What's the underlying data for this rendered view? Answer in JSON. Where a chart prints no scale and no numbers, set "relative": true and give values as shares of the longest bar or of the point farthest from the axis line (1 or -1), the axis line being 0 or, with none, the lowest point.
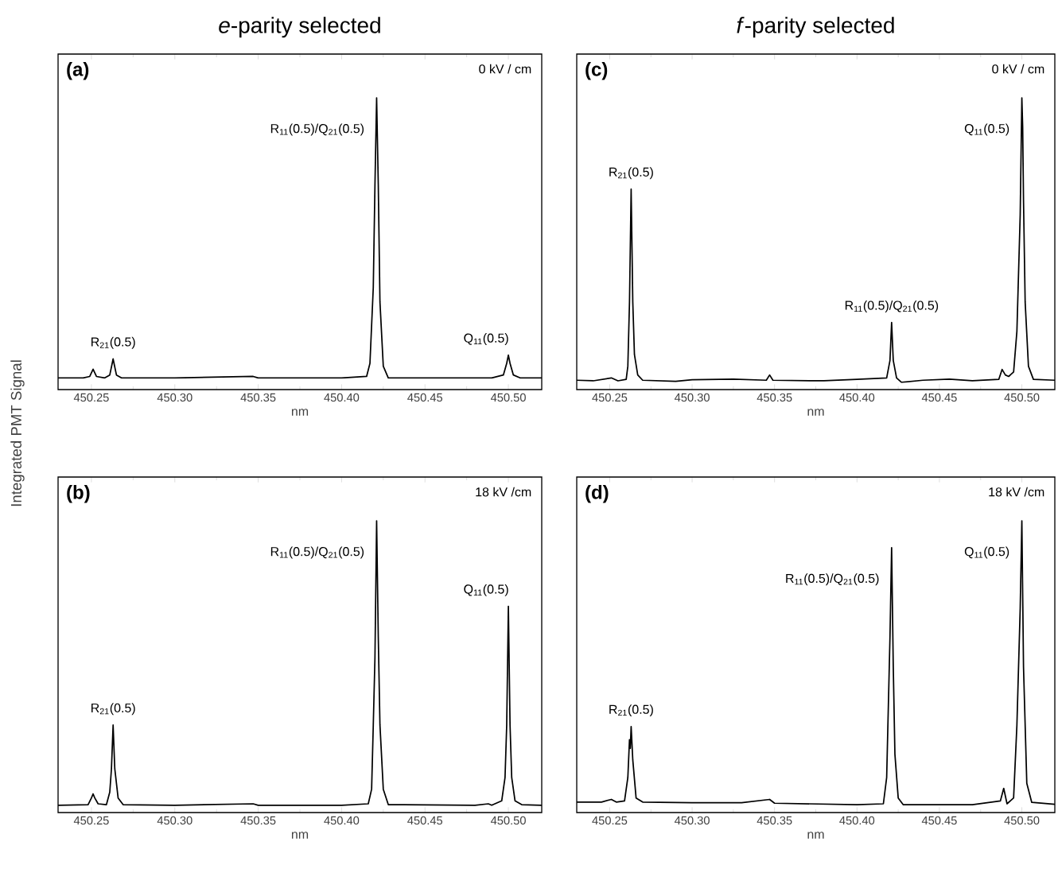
{
  "chart_data": [
    {
      "type": "line",
      "title": "*e*-parity selected",
      "ylabel": "Integrated PMT Signal",
      "xlabel": "nm",
      "relative": true,
      "color": "#000000",
      "x": [
        450.23,
        450.245,
        450.249,
        450.251,
        450.253,
        450.258,
        450.261,
        450.263,
        450.265,
        450.268,
        450.3,
        450.347,
        450.35,
        450.4,
        450.415,
        450.417,
        450.419,
        450.42,
        450.421,
        450.422,
        450.423,
        450.425,
        450.428,
        450.49,
        450.497,
        450.499,
        450.5,
        450.501,
        450.503,
        450.507,
        450.52
      ],
      "values": [
        0.04,
        0.04,
        0.045,
        0.07,
        0.045,
        0.04,
        0.05,
        0.105,
        0.05,
        0.04,
        0.04,
        0.045,
        0.04,
        0.04,
        0.045,
        0.09,
        0.35,
        0.7,
        1.0,
        0.7,
        0.3,
        0.08,
        0.04,
        0.04,
        0.05,
        0.09,
        0.118,
        0.09,
        0.05,
        0.04,
        0.04
      ],
      "xlim": [
        450.23,
        450.52
      ],
      "xticks": [
        450.25,
        {
          "value": 450.3,
          "label": "450.30"
        },
        450.35,
        {
          "value": 450.4,
          "label": "450.40"
        },
        450.45,
        {
          "value": 450.5,
          "label": "450.50"
        }
      ],
      "annotations": [
        "**(a)**",
        "0 kV / cm",
        {
          "text": "R$_{21}$(0.5)",
          "x": 450.263,
          "y": 0.105
        },
        {
          "text": "R$_{11}$(0.5)/Q$_{21}$(0.5)",
          "x": 450.421,
          "y": 1.0
        },
        {
          "text": "Q$_{11}$(0.5)",
          "x": 450.5,
          "y": 0.118
        }
      ]
    },
    {
      "type": "line",
      "title": "*f*-parity selected",
      "xlabel": "nm",
      "relative": true,
      "color": "#000000",
      "x": [
        450.23,
        450.24,
        450.251,
        450.255,
        450.26,
        450.261,
        450.262,
        450.263,
        450.264,
        450.265,
        450.267,
        450.27,
        450.29,
        450.3,
        450.325,
        450.345,
        450.347,
        450.349,
        450.38,
        450.4,
        450.418,
        450.42,
        450.421,
        450.422,
        450.424,
        450.427,
        450.44,
        450.456,
        450.47,
        450.486,
        450.488,
        450.49,
        450.492,
        450.495,
        450.497,
        450.499,
        450.5,
        450.5005,
        450.501,
        450.502,
        450.504,
        450.507,
        450.52
      ],
      "values": [
        0.032,
        0.03,
        0.04,
        0.03,
        0.035,
        0.08,
        0.3,
        0.687,
        0.3,
        0.12,
        0.05,
        0.032,
        0.028,
        0.034,
        0.036,
        0.032,
        0.05,
        0.032,
        0.03,
        0.035,
        0.04,
        0.1,
        0.23,
        0.1,
        0.04,
        0.025,
        0.032,
        0.036,
        0.03,
        0.035,
        0.069,
        0.05,
        0.045,
        0.06,
        0.2,
        0.6,
        1.0,
        0.9,
        0.65,
        0.3,
        0.08,
        0.035,
        0.032
      ],
      "xlim": [
        450.23,
        450.52
      ],
      "xticks": [
        450.25,
        {
          "value": 450.3,
          "label": "450.30"
        },
        450.35,
        {
          "value": 450.4,
          "label": "450.40"
        },
        450.45,
        {
          "value": 450.5,
          "label": "450.50"
        }
      ],
      "annotations": [
        "**(c)**",
        "0 kV / cm",
        {
          "text": "R$_{21}$(0.5)",
          "x": 450.263,
          "y": 0.687
        },
        {
          "text": "R$_{11}$(0.5)/Q$_{21}$(0.5)",
          "x": 450.421,
          "y": 0.23
        },
        {
          "text": "Q$_{11}$(0.5)",
          "x": 450.5,
          "y": 1.0
        }
      ]
    },
    {
      "type": "line",
      "xlabel": "nm",
      "relative": true,
      "color": "#000000",
      "x": [
        450.23,
        450.248,
        450.25,
        450.251,
        450.252,
        450.254,
        450.259,
        450.261,
        450.262,
        450.263,
        450.264,
        450.266,
        450.269,
        450.3,
        450.347,
        450.35,
        450.4,
        450.416,
        450.418,
        450.419,
        450.42,
        450.421,
        450.422,
        450.423,
        450.425,
        450.428,
        450.48,
        450.488,
        450.49,
        450.496,
        450.498,
        450.499,
        450.5,
        450.501,
        450.502,
        450.504,
        450.508,
        450.52
      ],
      "values": [
        0.025,
        0.027,
        0.05,
        0.064,
        0.05,
        0.03,
        0.027,
        0.07,
        0.15,
        0.3,
        0.15,
        0.05,
        0.027,
        0.025,
        0.03,
        0.025,
        0.025,
        0.03,
        0.08,
        0.3,
        0.53,
        1.0,
        0.6,
        0.3,
        0.08,
        0.027,
        0.025,
        0.03,
        0.025,
        0.04,
        0.12,
        0.3,
        0.707,
        0.3,
        0.12,
        0.04,
        0.027,
        0.025
      ],
      "xlim": [
        450.23,
        450.52
      ],
      "xticks": [
        450.25,
        {
          "value": 450.3,
          "label": "450.30"
        },
        450.35,
        {
          "value": 450.4,
          "label": "450.40"
        },
        450.45,
        {
          "value": 450.5,
          "label": "450.50"
        }
      ],
      "annotations": [
        "**(b)**",
        "18 kV /cm",
        {
          "text": "R$_{21}$(0.5)",
          "x": 450.263,
          "y": 0.3
        },
        {
          "text": "R$_{11}$(0.5)/Q$_{21}$(0.5)",
          "x": 450.421,
          "y": 1.0
        },
        {
          "text": "Q$_{11}$(0.5)",
          "x": 450.5,
          "y": 0.707
        }
      ]
    },
    {
      "type": "line",
      "xlabel": "nm",
      "relative": true,
      "color": "#000000",
      "x": [
        450.23,
        450.245,
        450.251,
        450.254,
        450.259,
        450.261,
        450.262,
        450.2625,
        450.263,
        450.264,
        450.266,
        450.27,
        450.3,
        450.33,
        450.347,
        450.35,
        450.4,
        450.416,
        450.418,
        450.42,
        450.421,
        450.422,
        450.423,
        450.425,
        450.428,
        450.47,
        450.487,
        450.489,
        450.491,
        450.495,
        450.497,
        450.499,
        450.5,
        450.501,
        450.503,
        450.506,
        450.52
      ],
      "values": [
        0.036,
        0.036,
        0.045,
        0.036,
        0.04,
        0.12,
        0.25,
        0.22,
        0.295,
        0.18,
        0.05,
        0.036,
        0.034,
        0.034,
        0.045,
        0.032,
        0.027,
        0.03,
        0.12,
        0.6,
        0.908,
        0.5,
        0.2,
        0.05,
        0.027,
        0.027,
        0.04,
        0.083,
        0.03,
        0.05,
        0.3,
        0.7,
        1.0,
        0.5,
        0.1,
        0.035,
        0.028
      ],
      "xlim": [
        450.23,
        450.52
      ],
      "xticks": [
        450.25,
        {
          "value": 450.3,
          "label": "450.30"
        },
        450.35,
        {
          "value": 450.4,
          "label": "450.40"
        },
        450.45,
        {
          "value": 450.5,
          "label": "450.50"
        }
      ],
      "annotations": [
        "**(d)**",
        "18 kV /cm",
        {
          "text": "R$_{21}$(0.5)",
          "x": 450.263,
          "y": 0.295
        },
        {
          "text": "R$_{11}$(0.5)/Q$_{21}$(0.5)",
          "x": 450.421,
          "y": 0.908
        },
        {
          "text": "Q$_{11}$(0.5)",
          "x": 450.5,
          "y": 1.0
        }
      ]
    }
  ]
}
